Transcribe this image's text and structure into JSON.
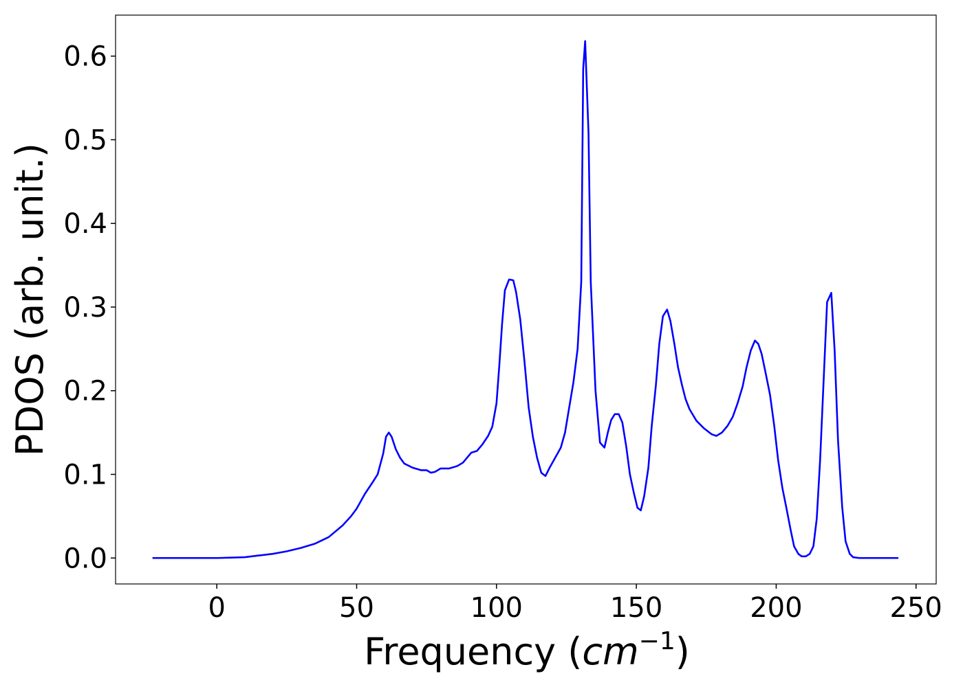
{
  "chart_data": {
    "type": "line",
    "x_label_parts": [
      "Frequency (",
      "cm",
      "−1",
      ")"
    ],
    "y_label": "PDOS (arb. unit.)",
    "xlim": [
      -36.2,
      257.2
    ],
    "ylim": [
      -0.031,
      0.649
    ],
    "xticks": [
      0,
      50,
      100,
      150,
      200,
      250
    ],
    "yticks": [
      {
        "value": 0,
        "label": "0.0"
      },
      0.1,
      0.2,
      0.3,
      0.4,
      0.5,
      0.6
    ],
    "grid": false,
    "series": [
      {
        "color": "#0000ff",
        "x": [
          -23,
          0,
          5,
          10,
          15,
          20,
          25,
          30,
          35,
          40,
          45,
          48,
          50,
          53,
          56,
          57.5,
          59.5,
          60.5,
          61.5,
          62.5,
          64,
          65.5,
          67,
          70,
          73,
          75,
          76.5,
          78,
          80,
          83,
          86,
          88,
          90,
          91,
          93,
          95,
          97,
          98.5,
          100,
          101,
          102,
          103,
          104.5,
          106,
          107,
          108.5,
          110,
          111.5,
          113,
          114.5,
          116,
          117.5,
          119,
          121,
          123,
          124.5,
          126,
          127.5,
          129,
          130.3,
          131,
          131.7,
          132.9,
          133.7,
          135.4,
          137,
          138.6,
          139.8,
          141,
          142.3,
          143.7,
          145,
          146.4,
          147.7,
          149.1,
          150.4,
          151.6,
          152.8,
          154.3,
          155.5,
          157,
          158.2,
          159.5,
          161,
          162.2,
          163.6,
          164.9,
          166.3,
          167.6,
          169,
          171.5,
          174.2,
          176.9,
          178.6,
          180.6,
          182.6,
          184.5,
          186.2,
          188,
          189.4,
          190.9,
          192.4,
          193.6,
          194.8,
          196.3,
          197.8,
          199.3,
          200.7,
          202.2,
          203.7,
          205.2,
          206.4,
          207.9,
          209.1,
          210.6,
          212,
          213.3,
          214.5,
          215.7,
          217,
          218.2,
          219.7,
          220.9,
          222.1,
          223.6,
          224.8,
          226.3,
          227.5,
          229.7,
          243.7
        ],
        "values": [
          0,
          0,
          0.0005,
          0.001,
          0.003,
          0.005,
          0.008,
          0.012,
          0.017,
          0.025,
          0.039,
          0.05,
          0.059,
          0.077,
          0.092,
          0.1,
          0.125,
          0.145,
          0.15,
          0.145,
          0.13,
          0.12,
          0.113,
          0.108,
          0.105,
          0.105,
          0.102,
          0.103,
          0.107,
          0.107,
          0.11,
          0.114,
          0.122,
          0.126,
          0.128,
          0.136,
          0.146,
          0.157,
          0.185,
          0.23,
          0.28,
          0.32,
          0.333,
          0.332,
          0.318,
          0.285,
          0.235,
          0.18,
          0.145,
          0.12,
          0.102,
          0.098,
          0.108,
          0.12,
          0.132,
          0.15,
          0.18,
          0.21,
          0.25,
          0.33,
          0.585,
          0.618,
          0.508,
          0.33,
          0.2,
          0.138,
          0.132,
          0.15,
          0.165,
          0.172,
          0.172,
          0.162,
          0.133,
          0.1,
          0.078,
          0.06,
          0.057,
          0.074,
          0.108,
          0.158,
          0.207,
          0.256,
          0.289,
          0.297,
          0.283,
          0.256,
          0.228,
          0.207,
          0.19,
          0.178,
          0.164,
          0.155,
          0.148,
          0.146,
          0.15,
          0.158,
          0.169,
          0.185,
          0.205,
          0.228,
          0.248,
          0.26,
          0.256,
          0.244,
          0.22,
          0.195,
          0.158,
          0.117,
          0.084,
          0.059,
          0.033,
          0.014,
          0.005,
          0.002,
          0.002,
          0.005,
          0.014,
          0.047,
          0.117,
          0.215,
          0.306,
          0.317,
          0.248,
          0.141,
          0.061,
          0.02,
          0.005,
          0.001,
          0,
          0
        ]
      }
    ]
  }
}
